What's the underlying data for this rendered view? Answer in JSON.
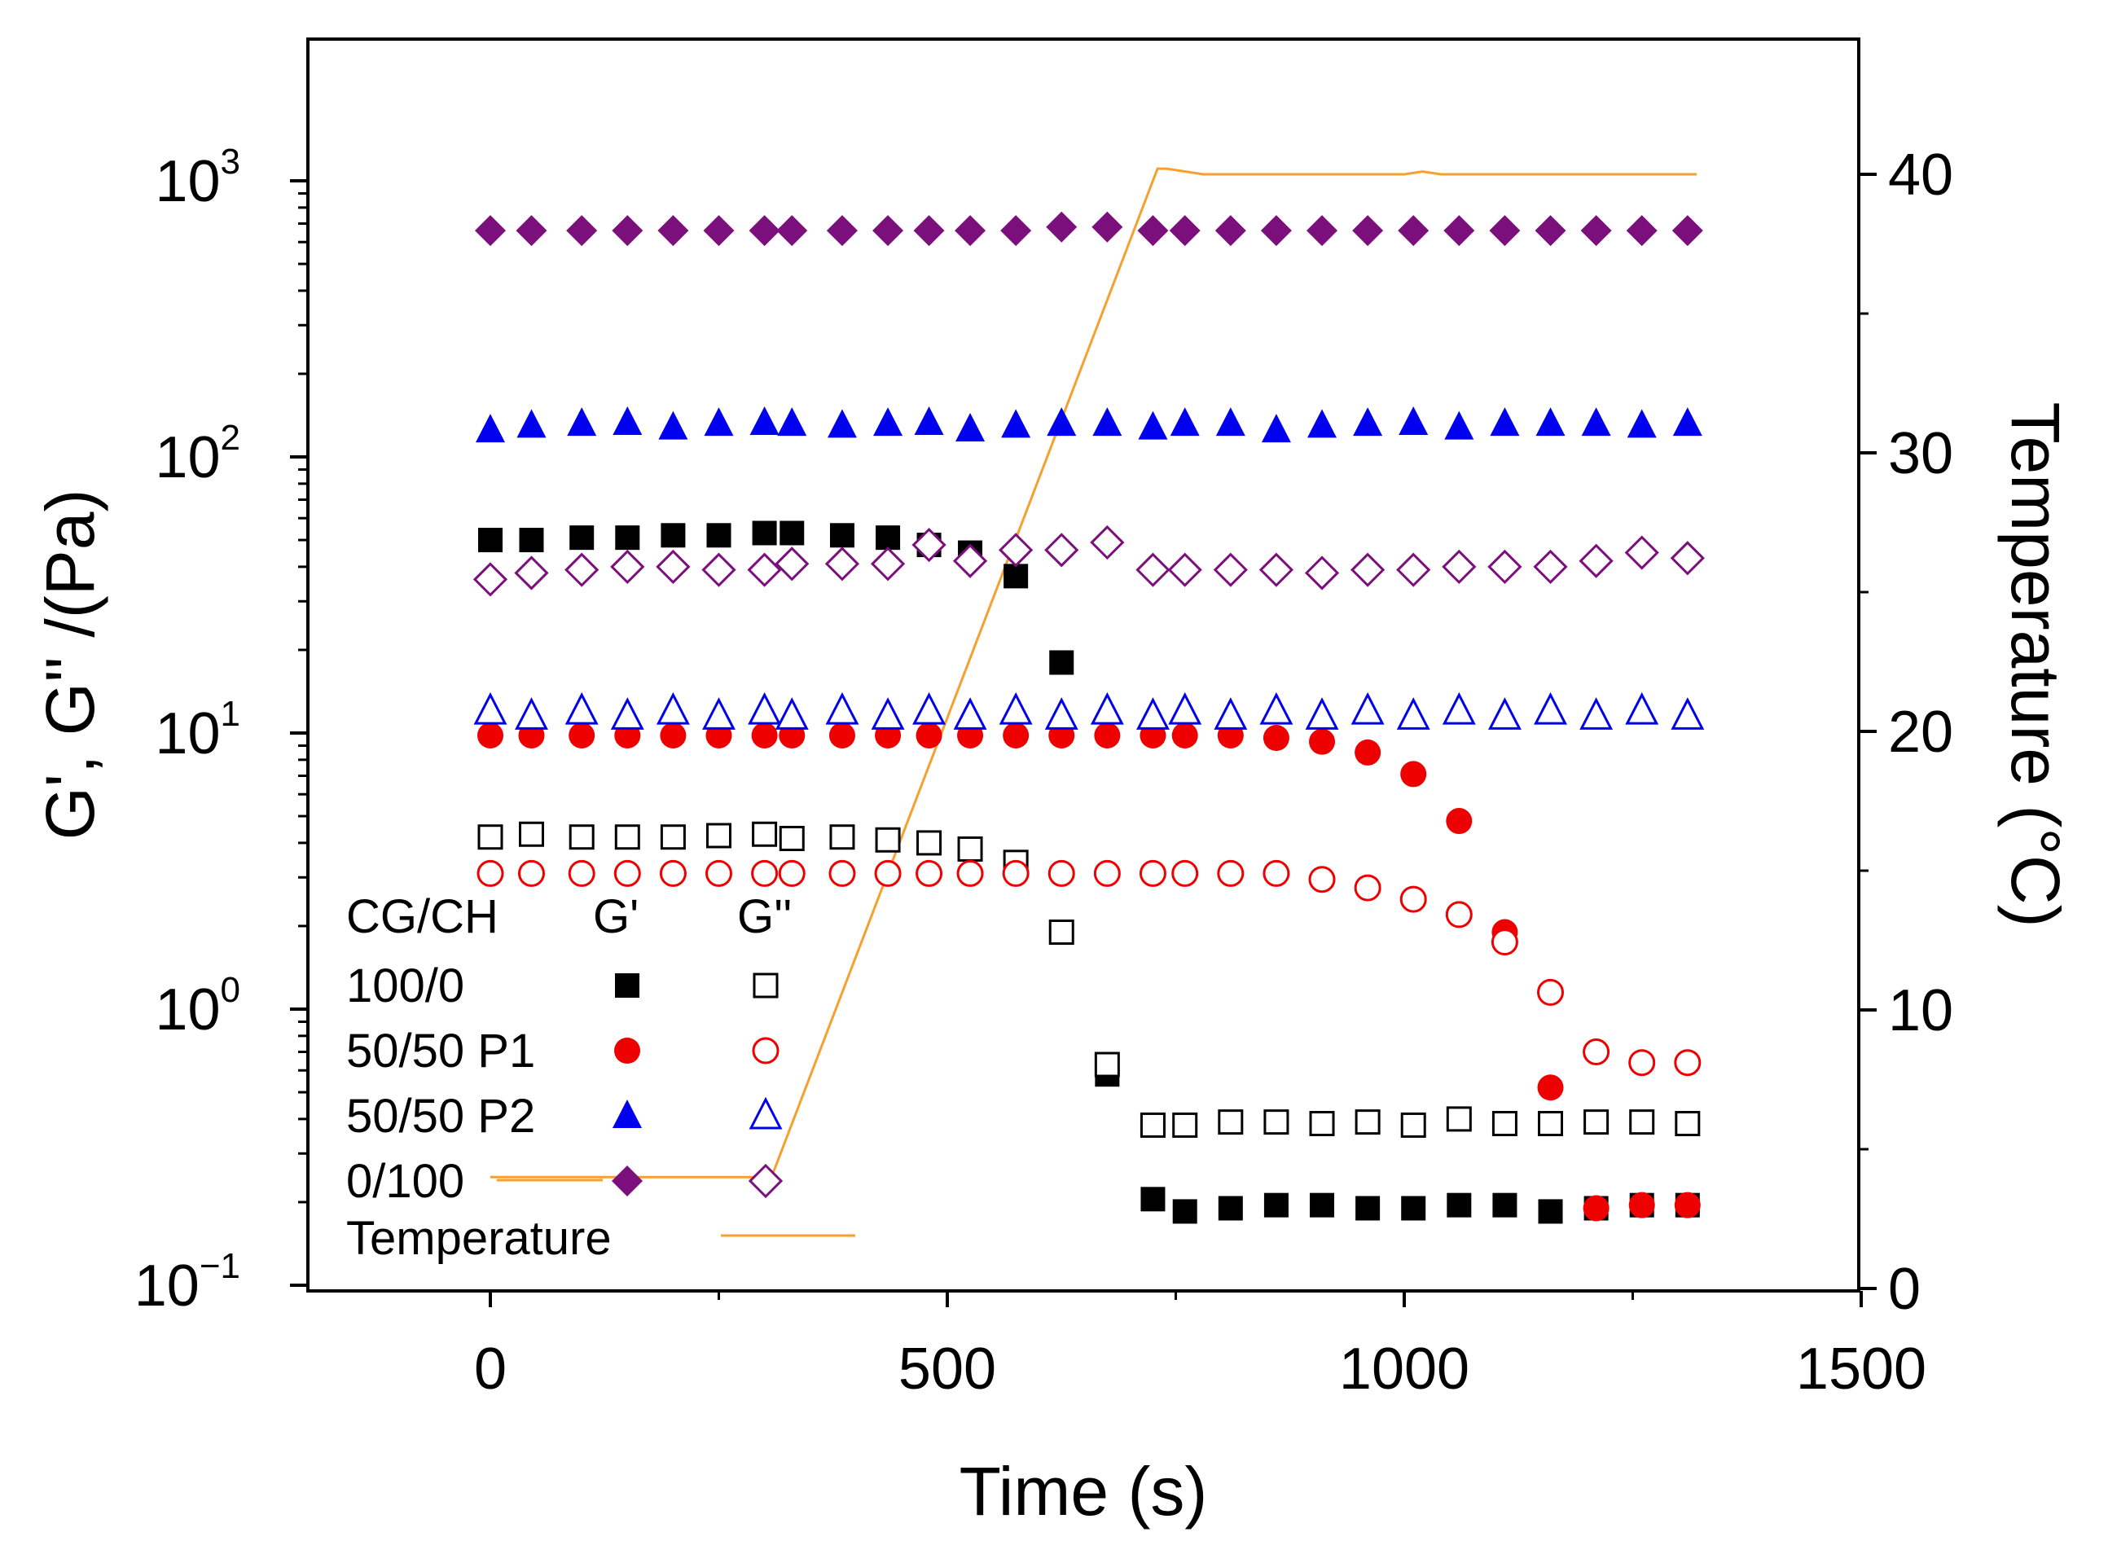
{
  "chart_data": {
    "type": "scatter",
    "title": "",
    "xlabel": "Time (s)",
    "ylabel": "G', G'' /(Pa)",
    "y2label": "Temperature (°C)",
    "xlim": [
      -200,
      1500
    ],
    "ylim_log": [
      0.1,
      3000
    ],
    "y2lim": [
      0,
      45
    ],
    "x_ticks": [
      0,
      500,
      1000,
      1500
    ],
    "y_ticks": [
      {
        "base": "10",
        "exp": "-1"
      },
      {
        "base": "10",
        "exp": "0"
      },
      {
        "base": "10",
        "exp": "1"
      },
      {
        "base": "10",
        "exp": "2"
      },
      {
        "base": "10",
        "exp": "3"
      }
    ],
    "y2_ticks": [
      0,
      10,
      20,
      30,
      40
    ],
    "legend": {
      "placement": "bottom-left",
      "header": [
        "CG/CH",
        "G'",
        "G''"
      ],
      "rows": [
        "100/0",
        "50/50 P1",
        "50/50 P2",
        "0/100"
      ],
      "temperature_label": "Temperature"
    },
    "series": [
      {
        "name": "100/0 G'",
        "axis": "left",
        "marker": "square",
        "filled": true,
        "color": "#000000",
        "x": [
          0,
          45,
          100,
          150,
          200,
          250,
          300,
          330,
          385,
          435,
          480,
          525,
          575,
          625,
          675,
          725,
          760,
          810,
          860,
          910,
          960,
          1010,
          1060,
          1110,
          1160,
          1210,
          1260,
          1310
        ],
        "y": [
          50,
          50,
          51,
          51,
          52,
          52,
          53,
          53,
          52,
          51,
          48,
          45,
          37,
          18,
          0.58,
          0.205,
          0.185,
          0.19,
          0.195,
          0.195,
          0.19,
          0.19,
          0.195,
          0.195,
          0.185,
          0.19,
          0.195,
          0.195
        ]
      },
      {
        "name": "100/0 G''",
        "axis": "left",
        "marker": "square",
        "filled": false,
        "color": "#000000",
        "x": [
          0,
          45,
          100,
          150,
          200,
          250,
          300,
          330,
          385,
          435,
          480,
          525,
          575,
          625,
          675,
          725,
          760,
          810,
          860,
          910,
          960,
          1010,
          1060,
          1110,
          1160,
          1210,
          1260,
          1310
        ],
        "y": [
          4.2,
          4.3,
          4.2,
          4.2,
          4.2,
          4.25,
          4.3,
          4.15,
          4.2,
          4.1,
          4.0,
          3.8,
          3.4,
          1.9,
          0.63,
          0.38,
          0.38,
          0.39,
          0.39,
          0.385,
          0.39,
          0.38,
          0.4,
          0.385,
          0.385,
          0.39,
          0.39,
          0.385
        ]
      },
      {
        "name": "50/50 P1 G'",
        "axis": "left",
        "marker": "circle",
        "filled": true,
        "color": "#ee0000",
        "x": [
          0,
          45,
          100,
          150,
          200,
          250,
          300,
          330,
          385,
          435,
          480,
          525,
          575,
          625,
          675,
          725,
          760,
          810,
          860,
          910,
          960,
          1010,
          1060,
          1110,
          1160,
          1210,
          1260,
          1310
        ],
        "y": [
          9.8,
          9.8,
          9.8,
          9.8,
          9.8,
          9.8,
          9.8,
          9.8,
          9.8,
          9.8,
          9.8,
          9.8,
          9.8,
          9.8,
          9.8,
          9.8,
          9.8,
          9.8,
          9.6,
          9.3,
          8.5,
          7.1,
          4.8,
          1.9,
          0.52,
          0.19,
          0.195,
          0.195
        ]
      },
      {
        "name": "50/50 P1 G''",
        "axis": "left",
        "marker": "circle",
        "filled": false,
        "color": "#ee0000",
        "x": [
          0,
          45,
          100,
          150,
          200,
          250,
          300,
          330,
          385,
          435,
          480,
          525,
          575,
          625,
          675,
          725,
          760,
          810,
          860,
          910,
          960,
          1010,
          1060,
          1110,
          1160,
          1210,
          1260,
          1310
        ],
        "y": [
          3.1,
          3.1,
          3.1,
          3.1,
          3.1,
          3.1,
          3.1,
          3.1,
          3.1,
          3.1,
          3.1,
          3.1,
          3.1,
          3.1,
          3.1,
          3.1,
          3.1,
          3.1,
          3.1,
          2.95,
          2.75,
          2.5,
          2.2,
          1.75,
          1.15,
          0.7,
          0.64,
          0.64
        ]
      },
      {
        "name": "50/50 P2 G'",
        "axis": "left",
        "marker": "triangle",
        "filled": true,
        "color": "#0000ee",
        "x": [
          0,
          45,
          100,
          150,
          200,
          250,
          300,
          330,
          385,
          435,
          480,
          525,
          575,
          625,
          675,
          725,
          760,
          810,
          860,
          910,
          960,
          1010,
          1060,
          1110,
          1160,
          1210,
          1260,
          1310
        ],
        "y": [
          125,
          130,
          132,
          133,
          128,
          132,
          133,
          132,
          130,
          132,
          133,
          126,
          130,
          132,
          132,
          128,
          132,
          132,
          125,
          130,
          132,
          133,
          128,
          132,
          132,
          132,
          130,
          132
        ]
      },
      {
        "name": "50/50 P2 G''",
        "axis": "left",
        "marker": "triangle",
        "filled": false,
        "color": "#0000ee",
        "x": [
          0,
          45,
          100,
          150,
          200,
          250,
          300,
          330,
          385,
          435,
          480,
          525,
          575,
          625,
          675,
          725,
          760,
          810,
          860,
          910,
          960,
          1010,
          1060,
          1110,
          1160,
          1210,
          1260,
          1310
        ],
        "y": [
          12,
          11.5,
          12,
          11.5,
          12,
          11.5,
          12,
          11.5,
          12,
          11.5,
          12,
          11.5,
          12,
          11.5,
          12,
          11.5,
          12,
          11.5,
          12,
          11.5,
          12,
          11.5,
          12,
          11.5,
          12,
          11.5,
          12,
          11.5
        ]
      },
      {
        "name": "0/100 G'",
        "axis": "left",
        "marker": "diamond",
        "filled": true,
        "color": "#7b0f7b",
        "x": [
          0,
          45,
          100,
          150,
          200,
          250,
          300,
          330,
          385,
          435,
          480,
          525,
          575,
          625,
          675,
          725,
          760,
          810,
          860,
          910,
          960,
          1010,
          1060,
          1110,
          1160,
          1210,
          1260,
          1310
        ],
        "y": [
          660,
          660,
          660,
          660,
          660,
          660,
          660,
          660,
          660,
          660,
          660,
          660,
          660,
          680,
          680,
          660,
          660,
          660,
          660,
          660,
          660,
          660,
          660,
          660,
          660,
          660,
          660,
          660
        ]
      },
      {
        "name": "0/100 G''",
        "axis": "left",
        "marker": "diamond",
        "filled": false,
        "color": "#7b0f7b",
        "x": [
          0,
          45,
          100,
          150,
          200,
          250,
          300,
          330,
          385,
          435,
          480,
          525,
          575,
          625,
          675,
          725,
          760,
          810,
          860,
          910,
          960,
          1010,
          1060,
          1110,
          1160,
          1210,
          1260,
          1310
        ],
        "y": [
          36,
          38,
          39,
          40,
          40,
          39,
          39,
          41,
          41,
          41,
          48,
          42,
          46,
          46,
          49,
          39,
          39,
          39,
          39,
          38,
          39,
          39,
          40,
          40,
          40,
          42,
          45,
          43
        ]
      },
      {
        "name": "Temperature",
        "axis": "right",
        "marker": "line",
        "color": "#f5a030",
        "x": [
          0,
          300,
          310,
          730,
          740,
          780,
          1000,
          1020,
          1040,
          1320
        ],
        "y": [
          4,
          4,
          4.2,
          40.2,
          40.2,
          40,
          40,
          40.1,
          40,
          40
        ]
      }
    ]
  }
}
